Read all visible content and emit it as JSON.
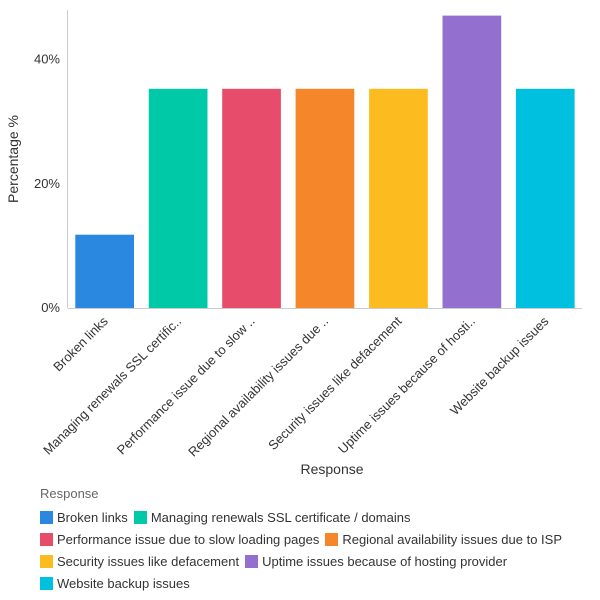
{
  "chart_data": {
    "type": "bar",
    "title": "",
    "xlabel": "Response",
    "ylabel": "Percentage %",
    "ylim": [
      0,
      48
    ],
    "yticks": [
      0,
      20,
      40
    ],
    "ytick_suffix": "%",
    "grid": false,
    "legend_title": "Response",
    "legend_position": "bottom",
    "categories": [
      "Broken links",
      "Managing renewals SSL certificate / domains",
      "Performance issue due to slow loading pages",
      "Regional availability issues due to ISP",
      "Security issues like defacement",
      "Uptime issues because of hosting provider",
      "Website backup issues"
    ],
    "tick_labels": [
      "Broken links",
      "Managing renewals SSL certific..",
      "Performance issue due to slow ..",
      "Regional availability issues due ..",
      "Security issues like defacement",
      "Uptime issues because of hosti..",
      "Website backup issues"
    ],
    "values": [
      11.8,
      35.3,
      35.3,
      35.3,
      35.3,
      47.1,
      35.3
    ],
    "colors": [
      "#2A88E0",
      "#00C9A7",
      "#E84C6B",
      "#F5872A",
      "#FCBB1E",
      "#9370D0",
      "#00C0E0"
    ]
  }
}
